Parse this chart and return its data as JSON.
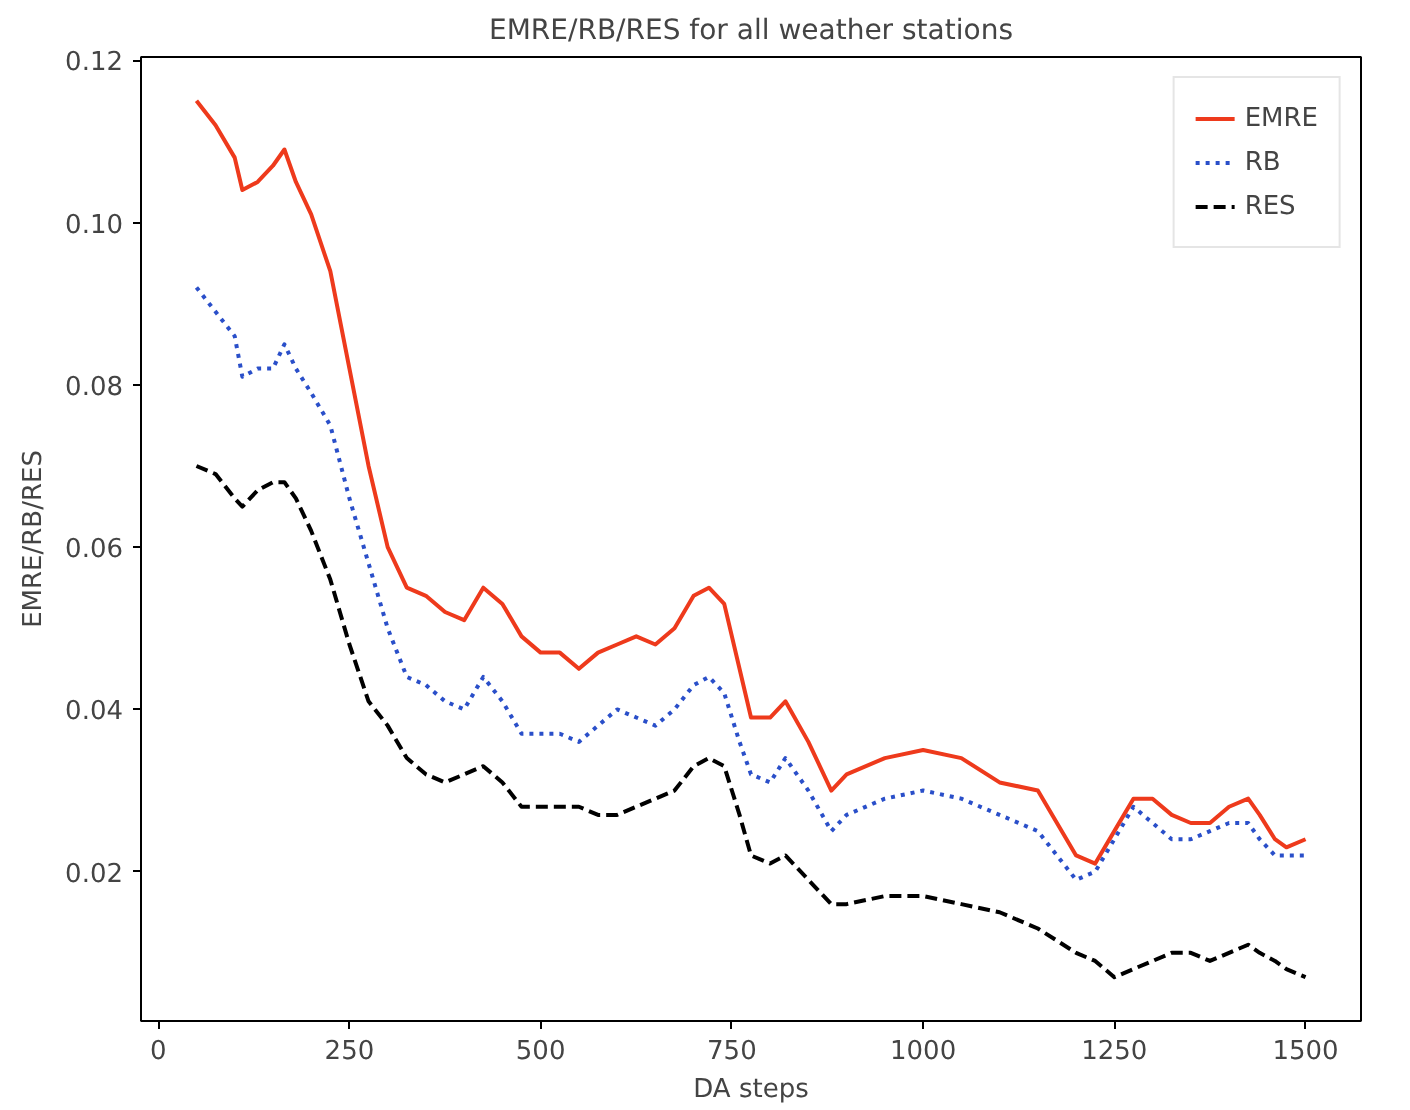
{
  "chart_data": {
    "type": "line",
    "title": "EMRE/RB/RES for all weather stations",
    "xlabel": "DA steps",
    "ylabel": "EMRE/RB/RES",
    "x": [
      50,
      75,
      100,
      110,
      130,
      150,
      165,
      180,
      200,
      225,
      250,
      275,
      300,
      325,
      350,
      375,
      400,
      425,
      450,
      475,
      500,
      525,
      550,
      575,
      600,
      625,
      650,
      675,
      700,
      720,
      740,
      760,
      775,
      800,
      820,
      850,
      880,
      900,
      950,
      1000,
      1050,
      1100,
      1150,
      1200,
      1225,
      1250,
      1275,
      1300,
      1325,
      1350,
      1375,
      1400,
      1425,
      1440,
      1460,
      1475,
      1500
    ],
    "series": [
      {
        "name": "EMRE",
        "color": "#ee3a1c",
        "line_style": "solid",
        "values": [
          0.115,
          0.112,
          0.108,
          0.104,
          0.105,
          0.107,
          0.109,
          0.105,
          0.101,
          0.094,
          0.082,
          0.07,
          0.06,
          0.055,
          0.054,
          0.052,
          0.051,
          0.055,
          0.053,
          0.049,
          0.047,
          0.047,
          0.045,
          0.047,
          0.048,
          0.049,
          0.048,
          0.05,
          0.054,
          0.055,
          0.053,
          0.045,
          0.039,
          0.039,
          0.041,
          0.036,
          0.03,
          0.032,
          0.034,
          0.035,
          0.034,
          0.031,
          0.03,
          0.022,
          0.021,
          0.025,
          0.029,
          0.029,
          0.027,
          0.026,
          0.026,
          0.028,
          0.029,
          0.027,
          0.024,
          0.023,
          0.024
        ]
      },
      {
        "name": "RB",
        "color": "#2a4fc9",
        "line_style": "dotted",
        "values": [
          0.092,
          0.089,
          0.086,
          0.081,
          0.082,
          0.082,
          0.085,
          0.082,
          0.079,
          0.075,
          0.066,
          0.058,
          0.05,
          0.044,
          0.043,
          0.041,
          0.04,
          0.044,
          0.041,
          0.037,
          0.037,
          0.037,
          0.036,
          0.038,
          0.04,
          0.039,
          0.038,
          0.04,
          0.043,
          0.044,
          0.042,
          0.036,
          0.032,
          0.031,
          0.034,
          0.03,
          0.025,
          0.027,
          0.029,
          0.03,
          0.029,
          0.027,
          0.025,
          0.019,
          0.02,
          0.024,
          0.028,
          0.026,
          0.024,
          0.024,
          0.025,
          0.026,
          0.026,
          0.024,
          0.022,
          0.022,
          0.022
        ]
      },
      {
        "name": "RES",
        "color": "#000000",
        "line_style": "dashed",
        "values": [
          0.07,
          0.069,
          0.066,
          0.065,
          0.067,
          0.068,
          0.068,
          0.066,
          0.062,
          0.056,
          0.048,
          0.041,
          0.038,
          0.034,
          0.032,
          0.031,
          0.032,
          0.033,
          0.031,
          0.028,
          0.028,
          0.028,
          0.028,
          0.027,
          0.027,
          0.028,
          0.029,
          0.03,
          0.033,
          0.034,
          0.033,
          0.027,
          0.022,
          0.021,
          0.022,
          0.019,
          0.016,
          0.016,
          0.017,
          0.017,
          0.016,
          0.015,
          0.013,
          0.01,
          0.009,
          0.007,
          0.008,
          0.009,
          0.01,
          0.01,
          0.009,
          0.01,
          0.011,
          0.01,
          0.009,
          0.008,
          0.007
        ]
      }
    ],
    "xlim": [
      -22.5,
      1572.5
    ],
    "ylim": [
      0.0016,
      0.1204
    ],
    "xticks": [
      0,
      250,
      500,
      750,
      1000,
      1250,
      1500
    ],
    "yticks": [
      {
        "value": 0.02,
        "label": "0.02"
      },
      {
        "value": 0.04,
        "label": "0.04"
      },
      {
        "value": 0.06,
        "label": "0.06"
      },
      {
        "value": 0.08,
        "label": "0.08"
      },
      {
        "value": 0.1,
        "label": "0.10"
      },
      {
        "value": 0.12,
        "label": "0.12"
      }
    ],
    "legend": "top right",
    "grid": false
  }
}
